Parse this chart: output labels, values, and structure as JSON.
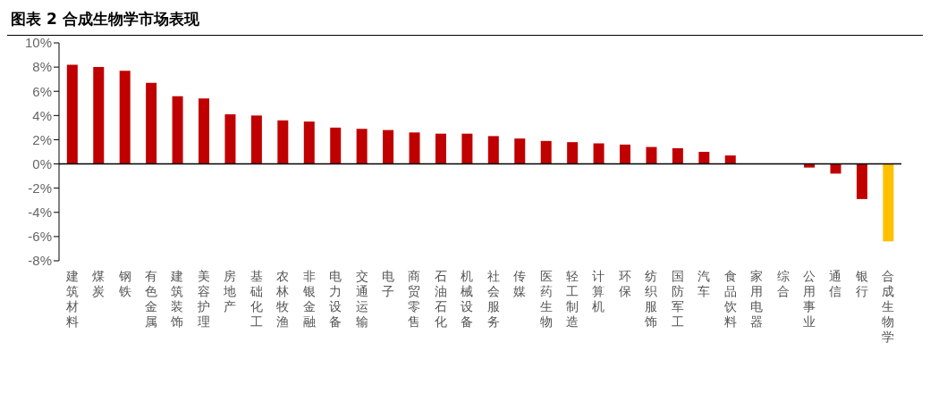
{
  "chart_data": {
    "type": "bar",
    "title": "图表 2 合成生物学市场表现",
    "categories": [
      "建筑材料",
      "煤炭",
      "钢铁",
      "有色金属",
      "建筑装饰",
      "美容护理",
      "房地产",
      "基础化工",
      "农林牧渔",
      "非银金融",
      "电力设备",
      "交通运输",
      "电子",
      "商贸零售",
      "石油石化",
      "机械设备",
      "社会服务",
      "传媒",
      "医药生物",
      "轻工制造",
      "计算机",
      "环保",
      "纺织服饰",
      "国防军工",
      "汽车",
      "食品饮料",
      "家用电器",
      "综合",
      "公用事业",
      "通信",
      "银行",
      "合成生物学"
    ],
    "values": [
      8.2,
      8.0,
      7.7,
      6.7,
      5.6,
      5.4,
      4.1,
      4.0,
      3.6,
      3.5,
      3.0,
      2.9,
      2.8,
      2.6,
      2.5,
      2.5,
      2.3,
      2.1,
      1.9,
      1.8,
      1.7,
      1.6,
      1.4,
      1.3,
      1.0,
      0.7,
      0,
      0,
      -0.3,
      -0.8,
      -2.9,
      -6.4
    ],
    "colors": [
      "#c00000",
      "#c00000",
      "#c00000",
      "#c00000",
      "#c00000",
      "#c00000",
      "#c00000",
      "#c00000",
      "#c00000",
      "#c00000",
      "#c00000",
      "#c00000",
      "#c00000",
      "#c00000",
      "#c00000",
      "#c00000",
      "#c00000",
      "#c00000",
      "#c00000",
      "#c00000",
      "#c00000",
      "#c00000",
      "#c00000",
      "#c00000",
      "#c00000",
      "#c00000",
      "#c00000",
      "#c00000",
      "#c00000",
      "#c00000",
      "#c00000",
      "#ffc000"
    ],
    "ylim": [
      -8,
      10
    ],
    "yticks": [
      {
        "value": -8,
        "label": "-8%"
      },
      {
        "value": -6,
        "label": "-6%"
      },
      {
        "value": -4,
        "label": "-4%"
      },
      {
        "value": -2,
        "label": "-2%"
      },
      {
        "value": 0,
        "label": "0%"
      },
      {
        "value": 2,
        "label": "2%"
      },
      {
        "value": 4,
        "label": "4%"
      },
      {
        "value": 6,
        "label": "6%"
      },
      {
        "value": 8,
        "label": "8%"
      },
      {
        "value": 10,
        "label": "10%"
      }
    ],
    "legend": false
  }
}
